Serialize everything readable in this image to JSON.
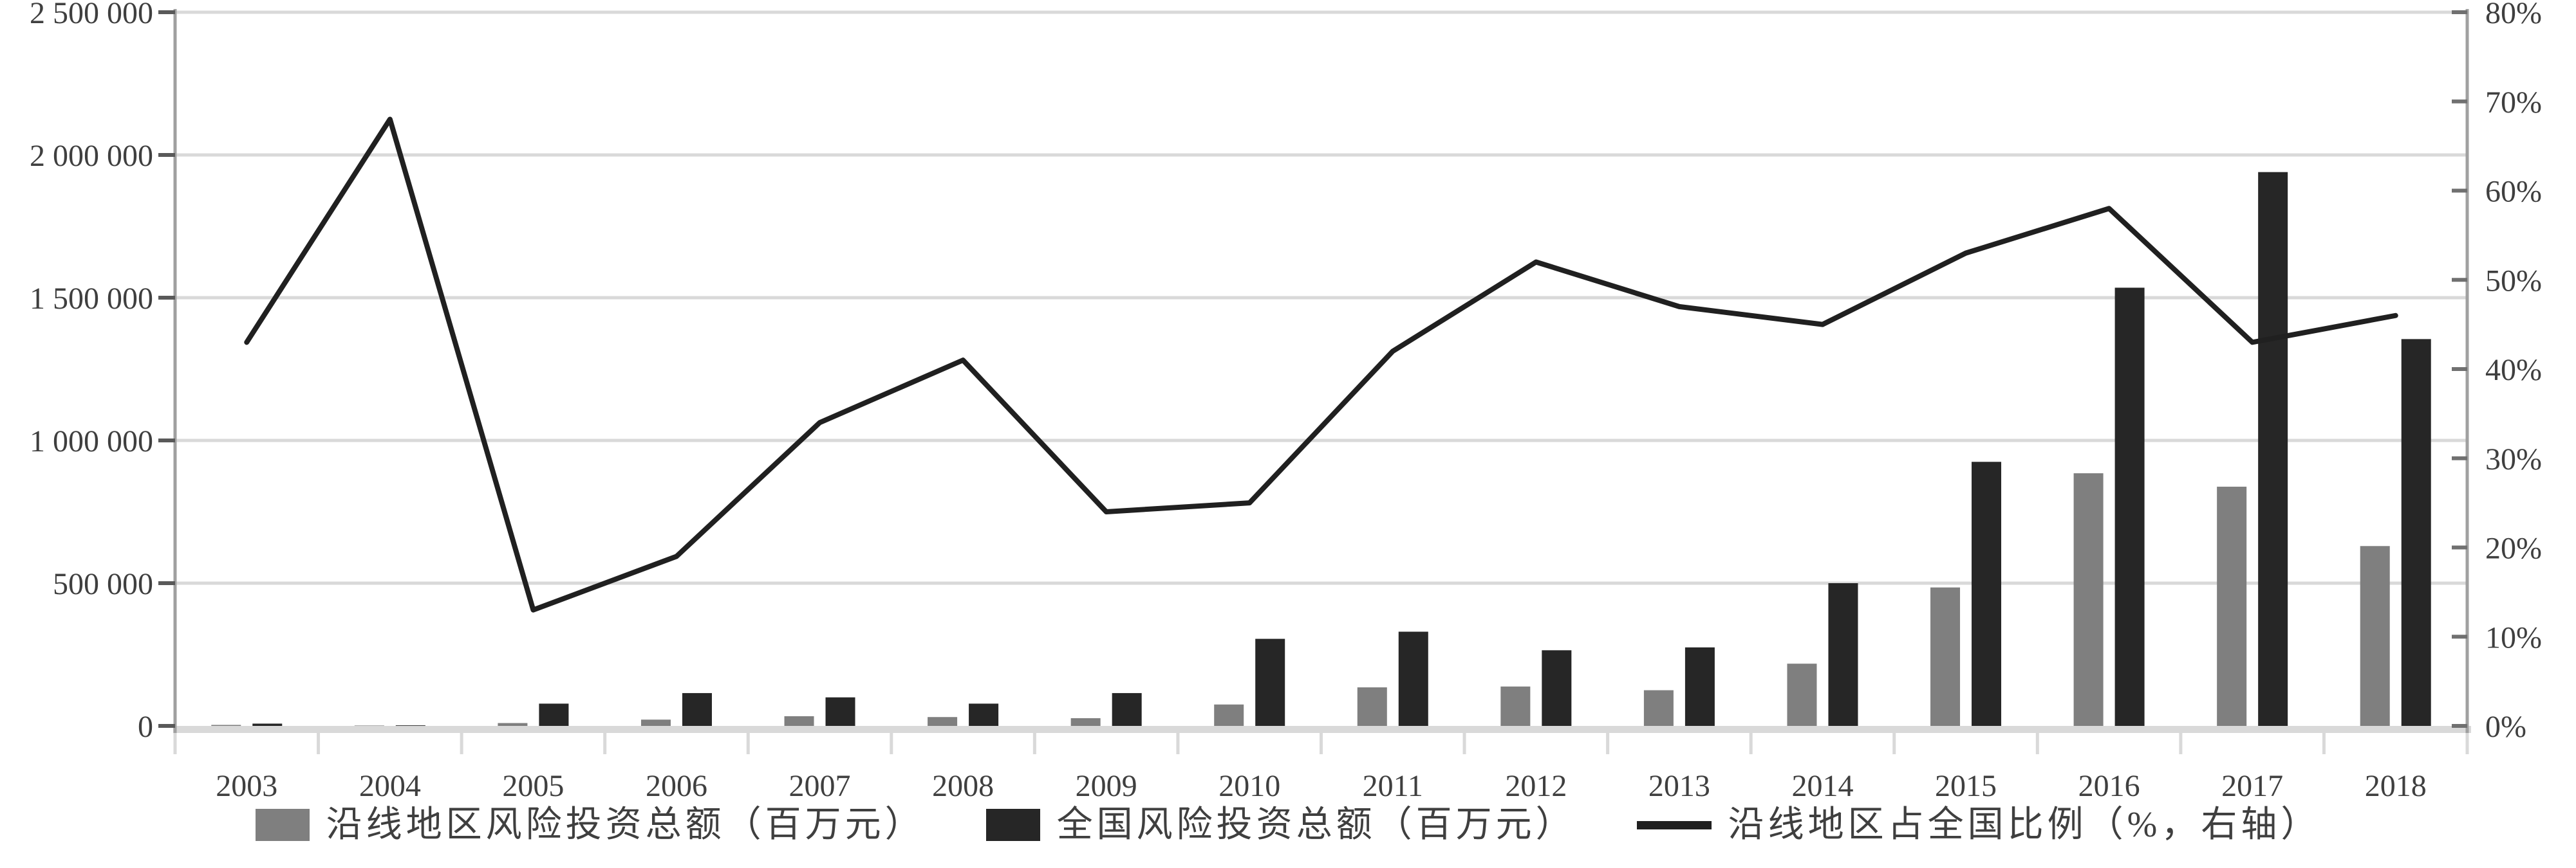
{
  "legend": {
    "items": [
      {
        "label": "沿线地区风险投资总额（百万元）",
        "swatch": "gray-square",
        "color": "#7f7f7f"
      },
      {
        "label": "全国风险投资总额（百万元）",
        "swatch": "black-square",
        "color": "#262626"
      },
      {
        "label": "沿线地区占全国比例（%，右轴）",
        "swatch": "line",
        "color": "#202020"
      }
    ]
  },
  "colors": {
    "bar_gray": "#7f7f7f",
    "bar_black": "#262626",
    "line": "#202020",
    "gridline": "#d9d9d9",
    "axis_line": "#a0a0a0",
    "axis_band": "#d9d9d9",
    "left_tick": "#595959",
    "right_tick": "#707070",
    "bottom_tick": "#d9d9d9",
    "text": "#3f3f3f"
  },
  "left_axis": {
    "tick_labels": [
      "0",
      "500 000",
      "1 000 000",
      "1 500 000",
      "2 000 000",
      "2 500 000"
    ],
    "min": 0,
    "max": 2500000,
    "step": 500000
  },
  "right_axis": {
    "tick_labels": [
      "0%",
      "10%",
      "20%",
      "30%",
      "40%",
      "50%",
      "60%",
      "70%",
      "80%"
    ],
    "min": 0,
    "max": 80,
    "step": 10
  },
  "chart_data": {
    "type": "bar+line combo",
    "categories": [
      "2003",
      "2004",
      "2005",
      "2006",
      "2007",
      "2008",
      "2009",
      "2010",
      "2011",
      "2012",
      "2013",
      "2014",
      "2015",
      "2016",
      "2017",
      "2018"
    ],
    "series": [
      {
        "name": "沿线地区风险投资总额（百万元）",
        "type": "bar",
        "axis": "left",
        "color": "#7f7f7f",
        "values": [
          3500,
          1400,
          10000,
          22000,
          34000,
          31000,
          27000,
          75000,
          135000,
          138000,
          125000,
          218000,
          485000,
          885000,
          838000,
          630000
        ]
      },
      {
        "name": "全国风险投资总额（百万元）",
        "type": "bar",
        "axis": "left",
        "color": "#262626",
        "values": [
          8000,
          2000,
          78000,
          115000,
          100000,
          78000,
          115000,
          305000,
          330000,
          265000,
          275000,
          500000,
          925000,
          1535000,
          1940000,
          1355000
        ]
      },
      {
        "name": "沿线地区占全国比例（%，右轴）",
        "type": "line",
        "axis": "right",
        "color": "#202020",
        "values": [
          43,
          68,
          13,
          19,
          34,
          41,
          24,
          25,
          42,
          52,
          47,
          45,
          53,
          58,
          43,
          46
        ]
      }
    ],
    "left_ylim": [
      0,
      2500000
    ],
    "right_ylim": [
      0,
      80
    ],
    "grid": "horizontal, at every 500 000 of left axis",
    "legend_position": "bottom-center",
    "title": "",
    "xlabel": "",
    "ylabel": ""
  }
}
